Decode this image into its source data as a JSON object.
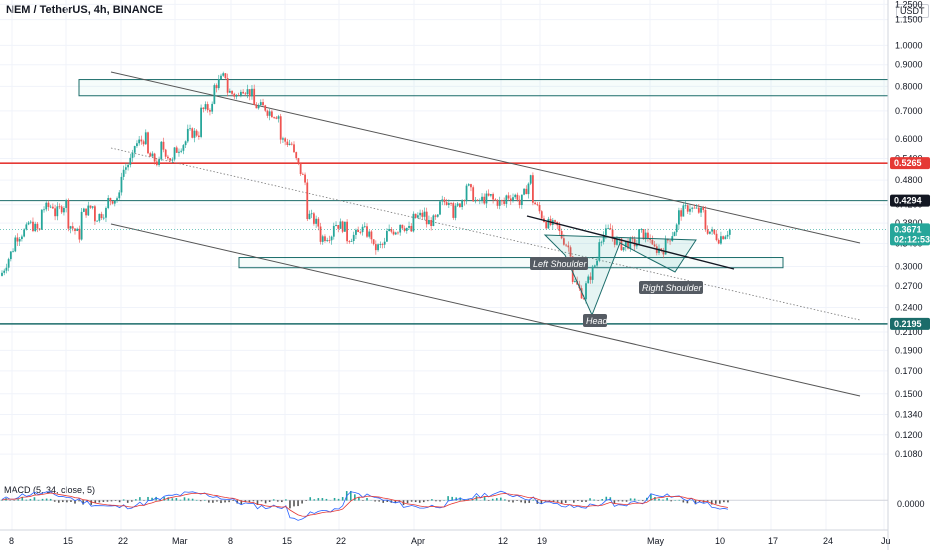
{
  "header": {
    "title": "NEM / TetherUS, 4h, BINANCE",
    "currency": "USDT"
  },
  "macd": {
    "label": "MACD (5, 34, close, 5)",
    "zero_label": "0.0000"
  },
  "annotations": {
    "left_shoulder": "Left Shoulder",
    "head": "Head",
    "right_shoulder": "Right Shoulder"
  },
  "price_tags": [
    {
      "value": "0.5265",
      "color": "#e53935"
    },
    {
      "value": "0.4294",
      "color": "#131722"
    },
    {
      "value": "0.3671",
      "color": "#26a69a",
      "timer": "02:12:53"
    },
    {
      "value": "0.2195",
      "color": "#1b6c6a"
    }
  ],
  "colors": {
    "up": "#26a69a",
    "down": "#ef5350",
    "support": "#1b6c6a",
    "resistance": "#e53935",
    "channel": "#555555"
  },
  "chart_data": {
    "type": "candlestick",
    "y_scale": "log",
    "ylim": [
      0.098,
      1.28
    ],
    "y_ticks": [
      "1.2500",
      "1.1500",
      "1.0000",
      "0.9000",
      "0.8000",
      "0.7000",
      "0.6000",
      "0.5400",
      "0.4800",
      "0.4200",
      "0.3800",
      "0.3400",
      "0.3000",
      "0.2700",
      "0.2400",
      "0.2100",
      "0.1900",
      "0.1700",
      "0.1500",
      "0.1340",
      "0.1200",
      "0.1080"
    ],
    "x_ticks": [
      "8",
      "15",
      "22",
      "Mar",
      "8",
      "15",
      "22",
      "Apr",
      "12",
      "19",
      "May",
      "10",
      "17",
      "24",
      "Ju"
    ],
    "horizontal_levels": [
      {
        "price": 0.5265,
        "kind": "resistance"
      },
      {
        "price": 0.4294,
        "kind": "level"
      },
      {
        "price": 0.2195,
        "kind": "support"
      }
    ],
    "zones": [
      {
        "top": 0.83,
        "bottom": 0.76
      },
      {
        "top": 0.315,
        "bottom": 0.298
      }
    ],
    "price_path": [
      [
        0.285,
        0.29
      ],
      [
        0.34,
        0.35
      ],
      [
        0.37,
        0.38
      ],
      [
        0.36,
        0.41
      ],
      [
        0.42,
        0.4
      ],
      [
        0.43,
        0.38
      ],
      [
        0.35,
        0.4
      ],
      [
        0.42,
        0.39
      ],
      [
        0.41,
        0.43
      ],
      [
        0.44,
        0.5
      ],
      [
        0.55,
        0.58
      ],
      [
        0.61,
        0.55
      ],
      [
        0.52,
        0.58
      ],
      [
        0.52,
        0.56
      ],
      [
        0.6,
        0.62
      ],
      [
        0.62,
        0.7
      ],
      [
        0.72,
        0.8
      ],
      [
        0.86,
        0.78
      ],
      [
        0.75,
        0.8
      ],
      [
        0.76,
        0.72
      ],
      [
        0.71,
        0.7
      ],
      [
        0.68,
        0.6
      ],
      [
        0.58,
        0.55
      ],
      [
        0.46,
        0.4
      ],
      [
        0.37,
        0.35
      ],
      [
        0.36,
        0.38
      ],
      [
        0.37,
        0.35
      ],
      [
        0.36,
        0.37
      ],
      [
        0.35,
        0.33
      ],
      [
        0.34,
        0.36
      ],
      [
        0.37,
        0.38
      ],
      [
        0.36,
        0.39
      ],
      [
        0.4,
        0.38
      ],
      [
        0.39,
        0.42
      ],
      [
        0.44,
        0.4
      ],
      [
        0.45,
        0.47
      ],
      [
        0.41,
        0.43
      ],
      [
        0.44,
        0.43
      ],
      [
        0.42,
        0.44
      ],
      [
        0.44,
        0.42
      ],
      [
        0.5,
        0.43
      ],
      [
        0.38,
        0.38
      ],
      [
        0.37,
        0.36
      ],
      [
        0.32,
        0.28
      ],
      [
        0.25,
        0.27
      ],
      [
        0.32,
        0.35
      ],
      [
        0.37,
        0.35
      ],
      [
        0.33,
        0.34
      ],
      [
        0.34,
        0.36
      ],
      [
        0.35,
        0.33
      ],
      [
        0.33,
        0.34
      ],
      [
        0.38,
        0.4
      ],
      [
        0.42,
        0.41
      ],
      [
        0.4,
        0.37
      ],
      [
        0.35,
        0.35
      ],
      [
        0.37,
        0.367
      ]
    ],
    "macd_range": [
      -0.08,
      0.06
    ]
  }
}
